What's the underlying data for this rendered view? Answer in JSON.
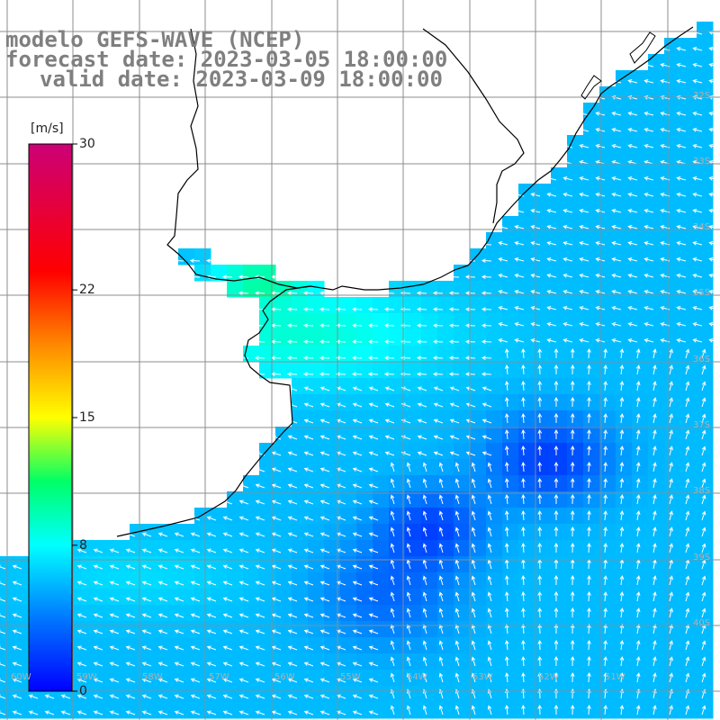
{
  "title": {
    "line1": "modelo GEFS-WAVE (NCEP)",
    "line2": "forecast date: 2023-03-05 18:00:00",
    "line3": "valid date: 2023-03-09 18:00:00"
  },
  "colorbar": {
    "unit": "[m/s]",
    "min": 0,
    "max": 30,
    "ticks": [
      {
        "label": "30",
        "value": 30
      },
      {
        "label": "22",
        "value": 22
      },
      {
        "label": "15",
        "value": 15
      },
      {
        "label": "8",
        "value": 8
      },
      {
        "label": "0",
        "value": 0
      }
    ],
    "stops": [
      {
        "value": 0,
        "color": "#0000ff"
      },
      {
        "value": 4,
        "color": "#0078ff"
      },
      {
        "value": 8,
        "color": "#00ffff"
      },
      {
        "value": 11.5,
        "color": "#00ff66"
      },
      {
        "value": 15,
        "color": "#ffff00"
      },
      {
        "value": 19,
        "color": "#ff8800"
      },
      {
        "value": 23,
        "color": "#ff0000"
      },
      {
        "value": 30,
        "color": "#cc0077"
      }
    ]
  },
  "lat_labels": [
    "32S",
    "33S",
    "34S",
    "35S",
    "36S",
    "37S",
    "38S",
    "39S",
    "40S"
  ],
  "lon_labels": [
    "60W",
    "59W",
    "58W",
    "57W",
    "56W",
    "55W",
    "54W",
    "53W",
    "52W",
    "51W"
  ],
  "colors": {
    "land": "#ffffff",
    "grid": "#8c8c8c",
    "coast": "#000000",
    "arrow": "#ffffff",
    "title": "#7f7f7f"
  }
}
